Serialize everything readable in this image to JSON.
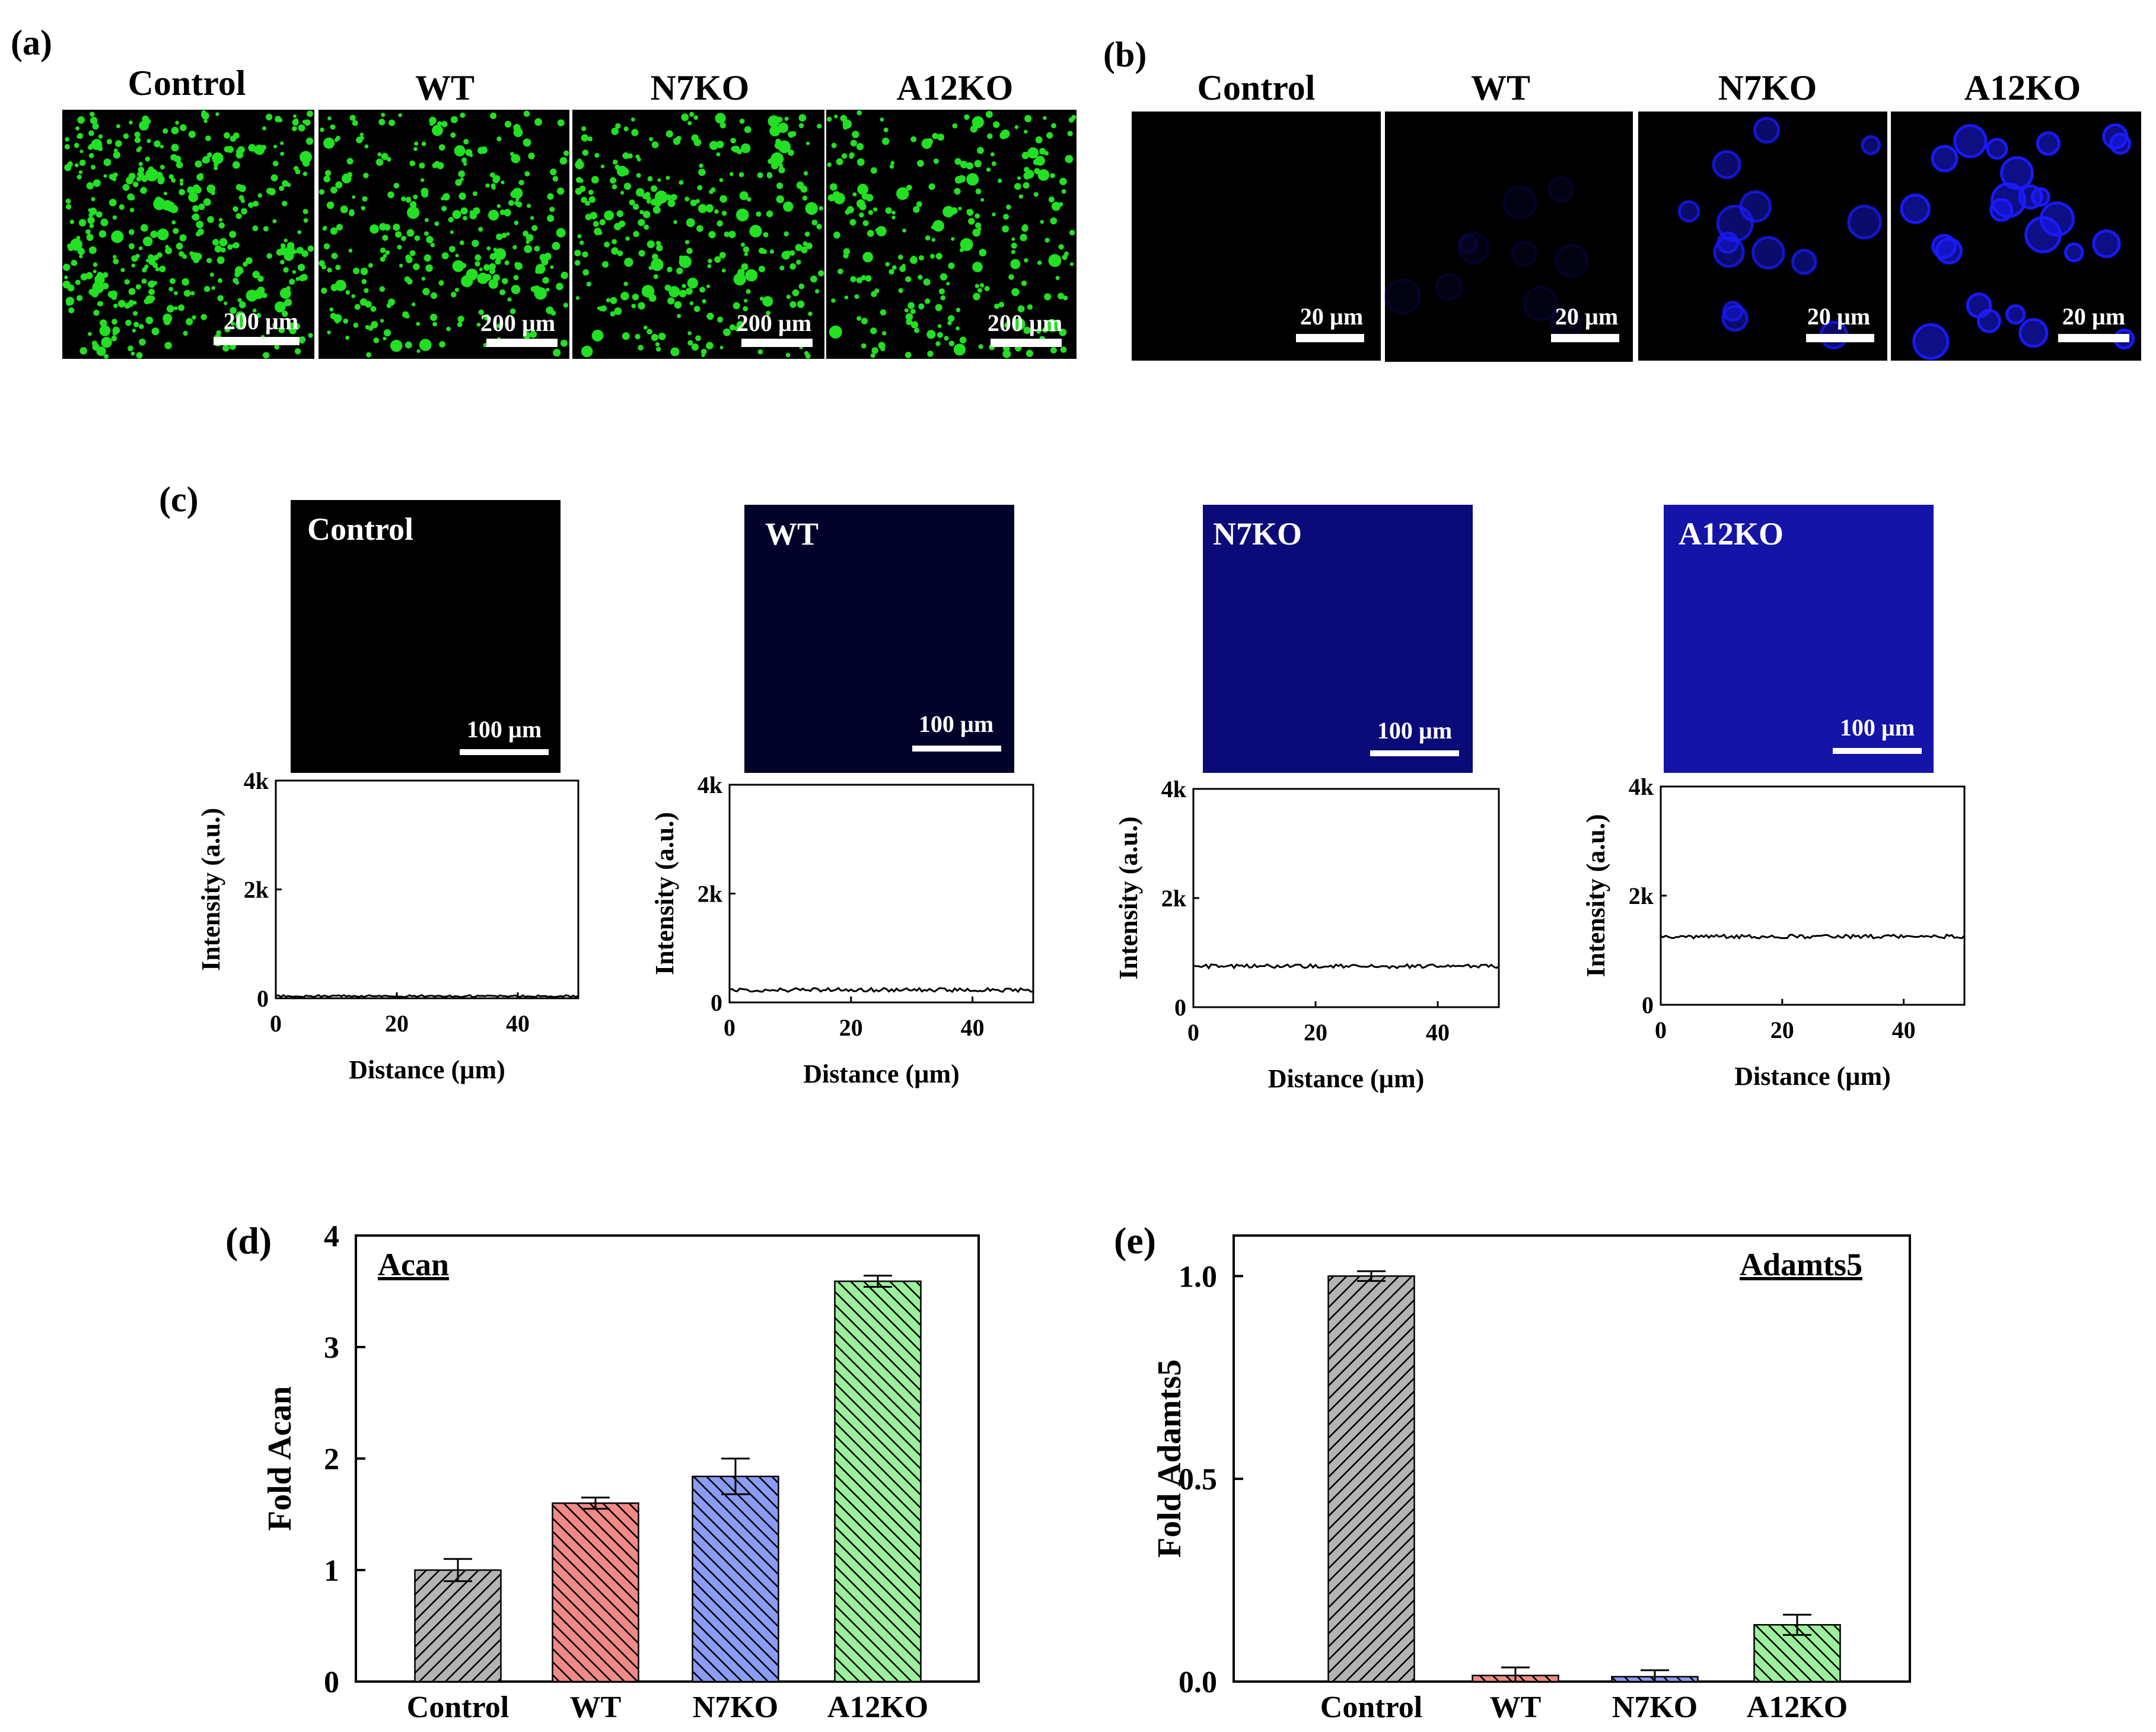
{
  "panel_labels": {
    "a": "(a)",
    "b": "(b)",
    "c": "(c)",
    "d": "(d)",
    "e": "(e)"
  },
  "groups": [
    "Control",
    "WT",
    "N7KO",
    "A12KO"
  ],
  "panel_a": {
    "scale_bar": "200 µm",
    "stain_color": "#22e022"
  },
  "panel_b": {
    "scale_bar": "20 µm",
    "stain_color": "#1a1aff"
  },
  "panel_c": {
    "scale_bar": "100 µm",
    "image_colors": [
      "#000000",
      "#02022a",
      "#0a0a78",
      "#1414a8"
    ]
  },
  "colors": {
    "gray": "#b4b4b4",
    "red": "#f08a86",
    "blue": "#8a9cf4",
    "green": "#9cf09c"
  },
  "chart_data": [
    {
      "type": "line",
      "panel": "c-Control",
      "title": "",
      "xlabel": "Distance (µm)",
      "ylabel": "Intensity (a.u.)",
      "xlim": [
        0,
        50
      ],
      "ylim": [
        0,
        4000
      ],
      "xticks": [
        "0",
        "20",
        "40"
      ],
      "yticks": [
        "0",
        "2k",
        "4k"
      ],
      "mean": 40,
      "noise": 18
    },
    {
      "type": "line",
      "panel": "c-WT",
      "title": "",
      "xlabel": "Distance (µm)",
      "ylabel": "Intensity (a.u.)",
      "xlim": [
        0,
        50
      ],
      "ylim": [
        0,
        4000
      ],
      "xticks": [
        "0",
        "20",
        "40"
      ],
      "yticks": [
        "0",
        "2k",
        "4k"
      ],
      "mean": 230,
      "noise": 35
    },
    {
      "type": "line",
      "panel": "c-N7KO",
      "title": "",
      "xlabel": "Distance (µm)",
      "ylabel": "Intensity (a.u.)",
      "xlim": [
        0,
        50
      ],
      "ylim": [
        0,
        4000
      ],
      "xticks": [
        "0",
        "20",
        "40"
      ],
      "yticks": [
        "0",
        "2k",
        "4k"
      ],
      "mean": 750,
      "noise": 35
    },
    {
      "type": "line",
      "panel": "c-A12KO",
      "title": "",
      "xlabel": "Distance (µm)",
      "ylabel": "Intensity (a.u.)",
      "xlim": [
        0,
        50
      ],
      "ylim": [
        0,
        4000
      ],
      "xticks": [
        "0",
        "20",
        "40"
      ],
      "yticks": [
        "0",
        "2k",
        "4k"
      ],
      "mean": 1250,
      "noise": 35
    },
    {
      "type": "bar",
      "panel": "d",
      "title": "Acan",
      "categories": [
        "Control",
        "WT",
        "N7KO",
        "A12KO"
      ],
      "values": [
        1.0,
        1.6,
        1.84,
        3.59
      ],
      "errors": [
        0.1,
        0.05,
        0.16,
        0.05
      ],
      "xlabel": "",
      "ylabel": "Fold Acan",
      "ylim": [
        0,
        4
      ],
      "yticks": [
        "0",
        "1",
        "2",
        "3",
        "4"
      ]
    },
    {
      "type": "bar",
      "panel": "e",
      "title": "Adamts5",
      "categories": [
        "Control",
        "WT",
        "N7KO",
        "A12KO"
      ],
      "values": [
        1.0,
        0.015,
        0.012,
        0.14
      ],
      "errors": [
        0.012,
        0.02,
        0.016,
        0.025
      ],
      "xlabel": "",
      "ylabel": "Fold Adamts5",
      "ylim": [
        0,
        1.1
      ],
      "yticks": [
        "0.0",
        "0.5",
        "1.0"
      ]
    }
  ]
}
